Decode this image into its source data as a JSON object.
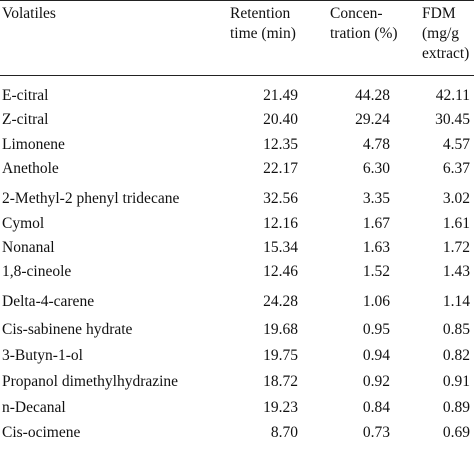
{
  "table": {
    "headers": {
      "volatiles": "Volatiles",
      "retention_line1": "Retention",
      "retention_line2": "time (min)",
      "conc_line1": "Concen-",
      "conc_line2": "tration (%)",
      "fdm_line1": "FDM",
      "fdm_line2": "(mg/g",
      "fdm_line3": "extract)"
    },
    "rows": [
      {
        "name": "E-citral",
        "retention": "21.49",
        "concentration": "44.28",
        "fdm": "42.11"
      },
      {
        "name": "Z-citral",
        "retention": "20.40",
        "concentration": "29.24",
        "fdm": "30.45"
      },
      {
        "name": "Limonene",
        "retention": "12.35",
        "concentration": "4.78",
        "fdm": "4.57"
      },
      {
        "name": "Anethole",
        "retention": "22.17",
        "concentration": "6.30",
        "fdm": "6.37"
      },
      {
        "name": "2-Methyl-2 phenyl tridecane",
        "retention": "32.56",
        "concentration": "3.35",
        "fdm": "3.02"
      },
      {
        "name": "Cymol",
        "retention": "12.16",
        "concentration": "1.67",
        "fdm": "1.61"
      },
      {
        "name": "Nonanal",
        "retention": "15.34",
        "concentration": "1.63",
        "fdm": "1.72"
      },
      {
        "name": "1,8-cineole",
        "retention": "12.46",
        "concentration": "1.52",
        "fdm": "1.43"
      },
      {
        "name": "Delta-4-carene",
        "retention": "24.28",
        "concentration": "1.06",
        "fdm": "1.14"
      },
      {
        "name": "Cis-sabinene hydrate",
        "retention": "19.68",
        "concentration": "0.95",
        "fdm": "0.85"
      },
      {
        "name": "3-Butyn-1-ol",
        "retention": "19.75",
        "concentration": "0.94",
        "fdm": "0.82"
      },
      {
        "name": "Propanol dimethylhydrazine",
        "retention": "18.72",
        "concentration": "0.92",
        "fdm": "0.91"
      },
      {
        "name": "n-Decanal",
        "retention": "19.23",
        "concentration": "0.84",
        "fdm": "0.89"
      },
      {
        "name": "Cis-ocimene",
        "retention": "8.70",
        "concentration": "0.73",
        "fdm": "0.69"
      }
    ]
  }
}
